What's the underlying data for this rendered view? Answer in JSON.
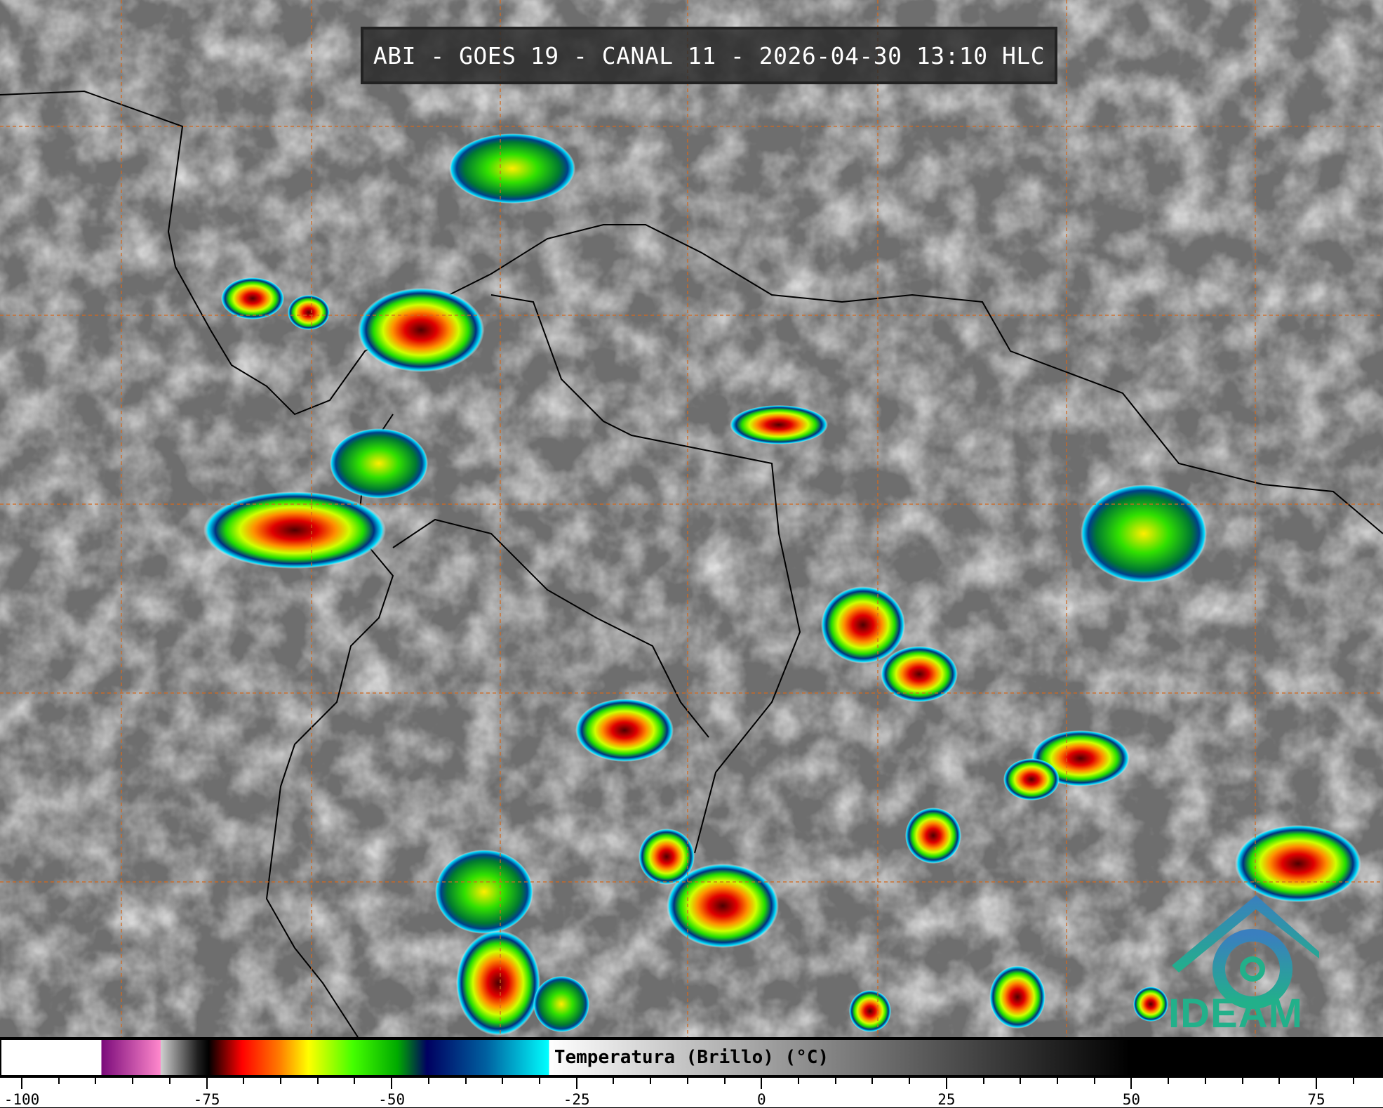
{
  "title": "ABI - GOES 19 - CANAL 11 - 2026-04-30 13:10 HLC",
  "colorbar": {
    "label": "Temperatura (Brillo) (°C)",
    "unit": "°C",
    "range": [
      -102.5,
      84
    ],
    "ticks": [
      "-100",
      "-75",
      "-50",
      "-25",
      "0",
      "25",
      "50",
      "75"
    ],
    "tick_values": [
      -100,
      -75,
      -50,
      -25,
      0,
      25,
      50,
      75
    ],
    "color_stops": [
      {
        "t": -102.5,
        "c": "#ffffff"
      },
      {
        "t": -89,
        "c": "#ffffff"
      },
      {
        "t": -89,
        "c": "#7a0a7a"
      },
      {
        "t": -81,
        "c": "#ff88cc"
      },
      {
        "t": -81,
        "c": "#d0d0d0"
      },
      {
        "t": -76,
        "c": "#202020"
      },
      {
        "t": -74.5,
        "c": "#000000"
      },
      {
        "t": -70,
        "c": "#ff0000"
      },
      {
        "t": -65,
        "c": "#ff7a00"
      },
      {
        "t": -61,
        "c": "#ffff00"
      },
      {
        "t": -55,
        "c": "#44ff00"
      },
      {
        "t": -49,
        "c": "#00aa00"
      },
      {
        "t": -45,
        "c": "#000060"
      },
      {
        "t": -37,
        "c": "#0060a0"
      },
      {
        "t": -28.5,
        "c": "#00ffff"
      },
      {
        "t": -28.5,
        "c": "#ffffff"
      },
      {
        "t": 50,
        "c": "#000000"
      },
      {
        "t": 84,
        "c": "#000000"
      }
    ]
  },
  "logo": {
    "text": "IDEAM",
    "color": "#22b08a"
  },
  "colors": {
    "grid": "#d2691e",
    "coastline": "#000000"
  }
}
